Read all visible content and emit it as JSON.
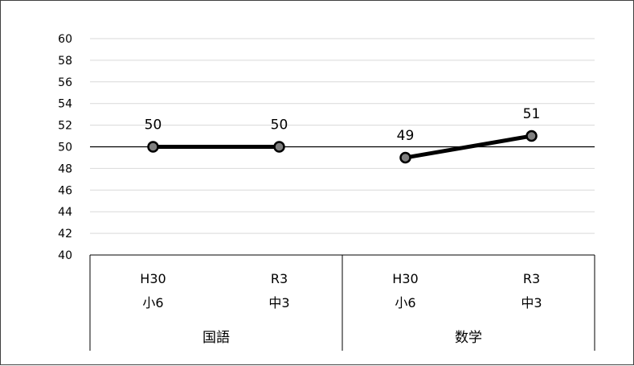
{
  "chart_data": {
    "type": "line",
    "title": "",
    "xlabel": "",
    "ylabel": "",
    "ylim": [
      40,
      60
    ],
    "ytick_step": 2,
    "yticks": [
      "40",
      "42",
      "44",
      "46",
      "48",
      "50",
      "52",
      "54",
      "56",
      "58",
      "60"
    ],
    "reference_line": 50,
    "grid": "horizontal",
    "legend": "none",
    "groups": [
      {
        "label": "国語",
        "categories": [
          {
            "line1": "H30",
            "line2": "小6"
          },
          {
            "line1": "R3",
            "line2": "中3"
          }
        ],
        "values": [
          50,
          50
        ],
        "data_labels": [
          "50",
          "50"
        ]
      },
      {
        "label": "数学",
        "categories": [
          {
            "line1": "H30",
            "line2": "小6"
          },
          {
            "line1": "R3",
            "line2": "中3"
          }
        ],
        "values": [
          49,
          51
        ],
        "data_labels": [
          "49",
          "51"
        ]
      }
    ],
    "colors": {
      "line": "#000000",
      "marker_fill": "#7f7f7f",
      "marker_stroke": "#000000",
      "grid": "#d9d9d9",
      "axis": "#000000"
    }
  }
}
